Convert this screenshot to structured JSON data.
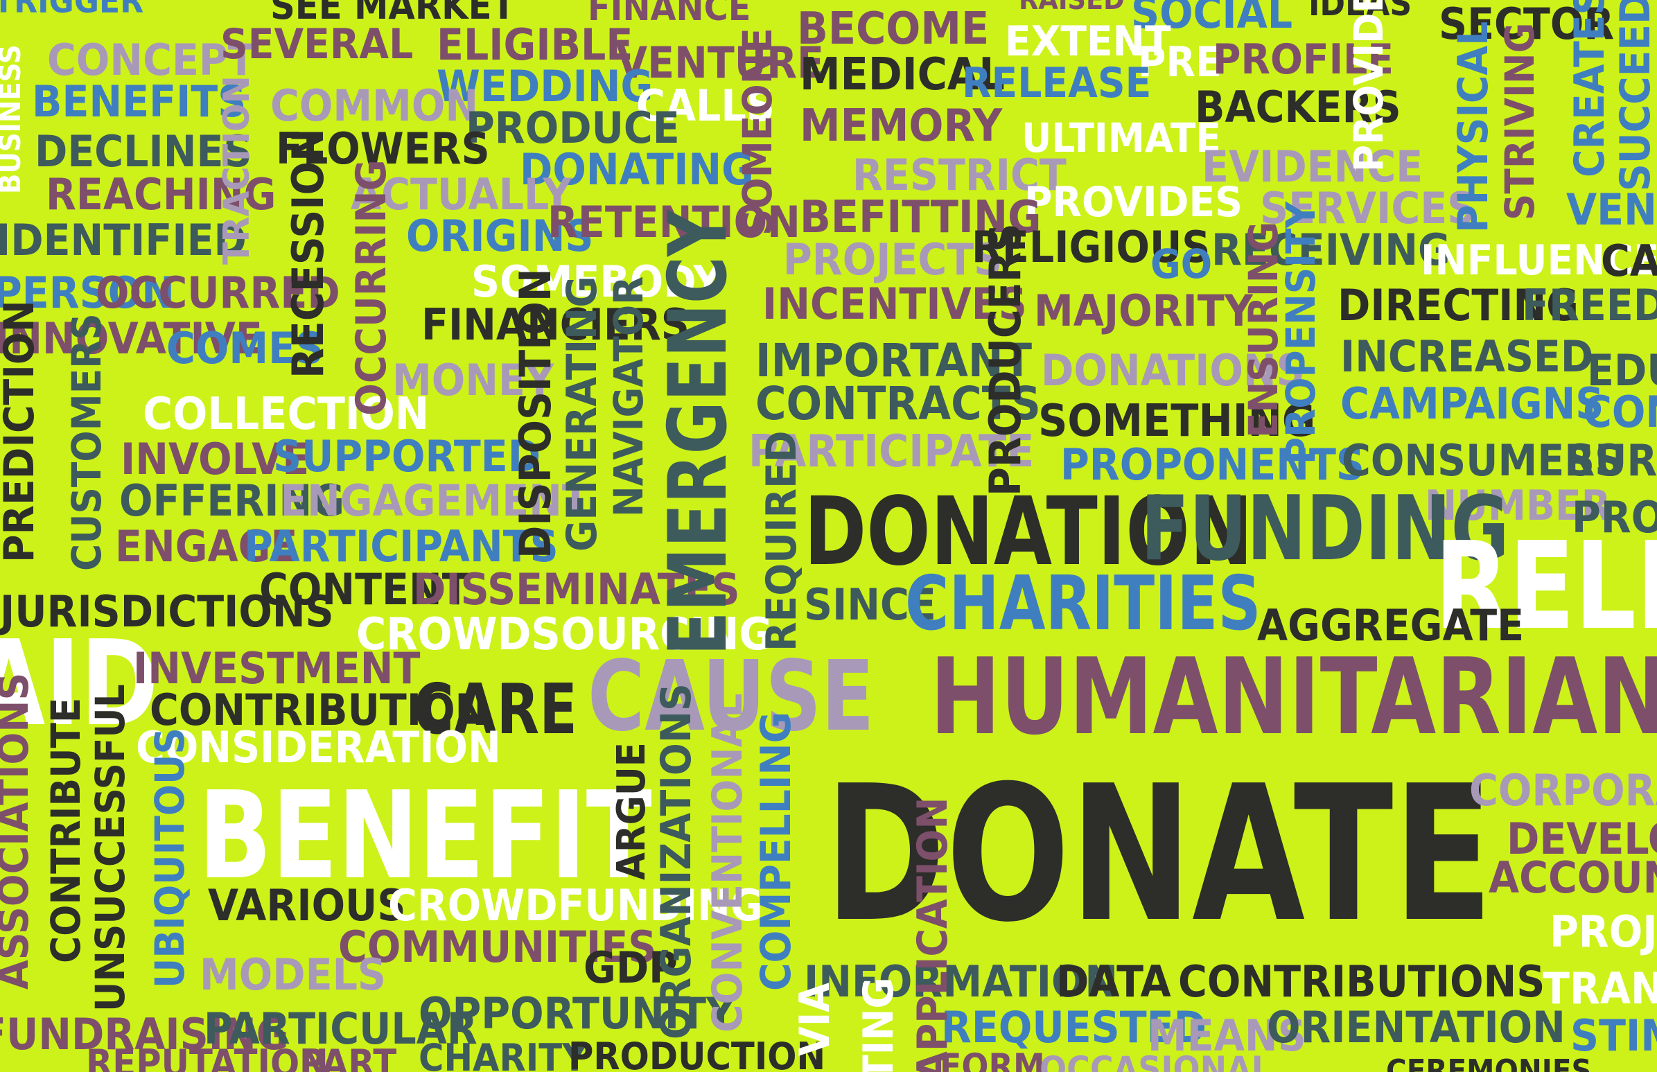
{
  "palette": {
    "background": "#ccf21a",
    "charcoal": "#2d2d2a",
    "white": "#ffffff",
    "plum": "#7e4f6a",
    "blue": "#3f7fc0",
    "lavender": "#a899b8",
    "slate": "#3d5a5c"
  },
  "words": [
    {
      "text": "TRIGGER",
      "color": "blue"
    },
    {
      "text": "SEE MARKET",
      "color": "charcoal"
    },
    {
      "text": "FINANCE",
      "color": "plum"
    },
    {
      "text": "RAISED",
      "color": "plum"
    },
    {
      "text": "SOCIAL",
      "color": "blue"
    },
    {
      "text": "IDEAS",
      "color": "charcoal"
    },
    {
      "text": "SECTOR",
      "color": "charcoal"
    },
    {
      "text": "CONCEPT",
      "color": "lavender"
    },
    {
      "text": "SEVERAL",
      "color": "plum"
    },
    {
      "text": "ELIGIBLE",
      "color": "plum"
    },
    {
      "text": "VENTURE",
      "color": "plum"
    },
    {
      "text": "BECOME",
      "color": "plum"
    },
    {
      "text": "EXTENT",
      "color": "white"
    },
    {
      "text": "PRE",
      "color": "white"
    },
    {
      "text": "PROFILE",
      "color": "plum"
    },
    {
      "text": "BENEFITS",
      "color": "blue"
    },
    {
      "text": "WEDDING",
      "color": "blue"
    },
    {
      "text": "CALLS",
      "color": "white"
    },
    {
      "text": "MEDICAL",
      "color": "charcoal"
    },
    {
      "text": "RELEASE",
      "color": "blue"
    },
    {
      "text": "BACKERS",
      "color": "charcoal"
    },
    {
      "text": "COMMON",
      "color": "lavender"
    },
    {
      "text": "PRODUCE",
      "color": "slate"
    },
    {
      "text": "MEMORY",
      "color": "plum"
    },
    {
      "text": "ULTIMATE",
      "color": "white"
    },
    {
      "text": "DECLINES",
      "color": "slate"
    },
    {
      "text": "FLOWERS",
      "color": "charcoal"
    },
    {
      "text": "DONATING",
      "color": "blue"
    },
    {
      "text": "RESTRICT",
      "color": "lavender"
    },
    {
      "text": "EVIDENCE",
      "color": "lavender"
    },
    {
      "text": "REACHING",
      "color": "plum"
    },
    {
      "text": "ACTUALLY",
      "color": "lavender"
    },
    {
      "text": "PROVIDES",
      "color": "white"
    },
    {
      "text": "SERVICES",
      "color": "lavender"
    },
    {
      "text": "IDENTIFIED",
      "color": "slate"
    },
    {
      "text": "ORIGINS",
      "color": "blue"
    },
    {
      "text": "RETENTION",
      "color": "plum"
    },
    {
      "text": "BEFITTING",
      "color": "plum"
    },
    {
      "text": "VENTURE",
      "color": "blue"
    },
    {
      "text": "PROJECTS",
      "color": "lavender"
    },
    {
      "text": "RELIGIOUS",
      "color": "charcoal"
    },
    {
      "text": "GO",
      "color": "blue"
    },
    {
      "text": "RECEIVING",
      "color": "slate"
    },
    {
      "text": "INFLUENCE",
      "color": "white"
    },
    {
      "text": "CAR",
      "color": "charcoal"
    },
    {
      "text": "SOMEBODY",
      "color": "white"
    },
    {
      "text": "PERSON",
      "color": "blue"
    },
    {
      "text": "OCCURRED",
      "color": "plum"
    },
    {
      "text": "INCENTIVES",
      "color": "plum"
    },
    {
      "text": "MAJORITY",
      "color": "plum"
    },
    {
      "text": "DIRECTING",
      "color": "charcoal"
    },
    {
      "text": "FREEDOM",
      "color": "slate"
    },
    {
      "text": "FINANCIERS",
      "color": "charcoal"
    },
    {
      "text": "INNOVATIVE",
      "color": "plum"
    },
    {
      "text": "COMES",
      "color": "blue"
    },
    {
      "text": "IMPORTANT",
      "color": "slate"
    },
    {
      "text": "INCREASED",
      "color": "slate"
    },
    {
      "text": "EDUC",
      "color": "slate"
    },
    {
      "text": "MONEY",
      "color": "lavender"
    },
    {
      "text": "DONATIONS",
      "color": "lavender"
    },
    {
      "text": "CONTRACTS",
      "color": "slate"
    },
    {
      "text": "CAMPAIGNS",
      "color": "blue"
    },
    {
      "text": "CONS",
      "color": "blue"
    },
    {
      "text": "COLLECTION",
      "color": "white"
    },
    {
      "text": "SOMETHING",
      "color": "charcoal"
    },
    {
      "text": "INVOLVE",
      "color": "plum"
    },
    {
      "text": "SUPPORTED",
      "color": "blue"
    },
    {
      "text": "PARTICIPATE",
      "color": "lavender"
    },
    {
      "text": "PROPONENTS",
      "color": "blue"
    },
    {
      "text": "CONSUMERS",
      "color": "slate"
    },
    {
      "text": "SURVI",
      "color": "slate"
    },
    {
      "text": "OFFERING",
      "color": "slate"
    },
    {
      "text": "ENGAGEMENT",
      "color": "lavender"
    },
    {
      "text": "NUMBER",
      "color": "lavender"
    },
    {
      "text": "PROM",
      "color": "slate"
    },
    {
      "text": "DONATION",
      "color": "charcoal"
    },
    {
      "text": "FUNDING",
      "color": "slate"
    },
    {
      "text": "ENGAGE",
      "color": "plum"
    },
    {
      "text": "PARTICIPANTS",
      "color": "blue"
    },
    {
      "text": "RELI",
      "color": "white"
    },
    {
      "text": "CONTENT",
      "color": "charcoal"
    },
    {
      "text": "DISSEMINATES",
      "color": "plum"
    },
    {
      "text": "JURISDICTIONS",
      "color": "charcoal"
    },
    {
      "text": "SINCE",
      "color": "slate"
    },
    {
      "text": "CHARITIES",
      "color": "blue"
    },
    {
      "text": "AGGREGATE",
      "color": "charcoal"
    },
    {
      "text": "CROWDSOURCING",
      "color": "white"
    },
    {
      "text": "AID",
      "color": "white"
    },
    {
      "text": "INVESTMENT",
      "color": "plum"
    },
    {
      "text": "CAUSE",
      "color": "lavender"
    },
    {
      "text": "HUMANITARIAN",
      "color": "plum"
    },
    {
      "text": "CONTRIBUTION",
      "color": "charcoal"
    },
    {
      "text": "CARE",
      "color": "charcoal"
    },
    {
      "text": "CONSIDERATION",
      "color": "white"
    },
    {
      "text": "BENEFIT",
      "color": "white"
    },
    {
      "text": "DONATE",
      "color": "charcoal"
    },
    {
      "text": "CORPORATIO",
      "color": "lavender"
    },
    {
      "text": "DEVELOPM",
      "color": "plum"
    },
    {
      "text": "ACCOUNTA",
      "color": "plum"
    },
    {
      "text": "VARIOUS",
      "color": "charcoal"
    },
    {
      "text": "CROWDFUNDING",
      "color": "white"
    },
    {
      "text": "PROJE",
      "color": "white"
    },
    {
      "text": "COMMUNITIES",
      "color": "plum"
    },
    {
      "text": "MODELS",
      "color": "lavender"
    },
    {
      "text": "GDP",
      "color": "charcoal"
    },
    {
      "text": "INFORMATION",
      "color": "slate"
    },
    {
      "text": "DATA",
      "color": "charcoal"
    },
    {
      "text": "CONTRIBUTIONS",
      "color": "charcoal"
    },
    {
      "text": "TRANS",
      "color": "white"
    },
    {
      "text": "OPPORTUNITY",
      "color": "slate"
    },
    {
      "text": "FUNDRAISING",
      "color": "plum"
    },
    {
      "text": "PARTICULAR",
      "color": "slate"
    },
    {
      "text": "REQUESTED",
      "color": "blue"
    },
    {
      "text": "MEANS",
      "color": "lavender"
    },
    {
      "text": "ORIENTATION",
      "color": "slate"
    },
    {
      "text": "STIM",
      "color": "blue"
    },
    {
      "text": "REPUTATION",
      "color": "plum"
    },
    {
      "text": "PART",
      "color": "plum"
    },
    {
      "text": "CHARITY",
      "color": "slate"
    },
    {
      "text": "PRODUCTION",
      "color": "charcoal"
    },
    {
      "text": "FORM",
      "color": "plum"
    },
    {
      "text": "OCCASIONAL",
      "color": "lavender"
    },
    {
      "text": "CEREMONIES",
      "color": "charcoal"
    },
    {
      "text": "BUSINESS",
      "color": "white"
    },
    {
      "text": "TRACTION",
      "color": "lavender"
    },
    {
      "text": "RECESSION",
      "color": "charcoal"
    },
    {
      "text": "OCCURRING",
      "color": "plum"
    },
    {
      "text": "SOMEONE",
      "color": "plum"
    },
    {
      "text": "EMERGENCY",
      "color": "slate"
    },
    {
      "text": "DISPOSITION",
      "color": "charcoal"
    },
    {
      "text": "GENERATING",
      "color": "slate"
    },
    {
      "text": "NAVIGATOR",
      "color": "slate"
    },
    {
      "text": "REQUIRED",
      "color": "slate"
    },
    {
      "text": "PRODUCERS",
      "color": "charcoal"
    },
    {
      "text": "ENSURING",
      "color": "plum"
    },
    {
      "text": "PROPENSITY",
      "color": "blue"
    },
    {
      "text": "PROVIDE",
      "color": "white"
    },
    {
      "text": "PHYSICAL",
      "color": "blue"
    },
    {
      "text": "STRIVING",
      "color": "plum"
    },
    {
      "text": "CREATES",
      "color": "blue"
    },
    {
      "text": "SUCCEED",
      "color": "blue"
    },
    {
      "text": "PREDICTION",
      "color": "charcoal"
    },
    {
      "text": "CUSTOMERS",
      "color": "slate"
    },
    {
      "text": "ASSOCIATIONS",
      "color": "plum"
    },
    {
      "text": "CONTRIBUTE",
      "color": "charcoal"
    },
    {
      "text": "UNSUCCESSFUL",
      "color": "charcoal"
    },
    {
      "text": "UBIQUITOUS",
      "color": "blue"
    },
    {
      "text": "ARGUE",
      "color": "charcoal"
    },
    {
      "text": "ORGANIZATIONS",
      "color": "slate"
    },
    {
      "text": "CONVENTIONAL",
      "color": "lavender"
    },
    {
      "text": "COMPELLING",
      "color": "blue"
    },
    {
      "text": "VIA",
      "color": "white"
    },
    {
      "text": "TING",
      "color": "white"
    },
    {
      "text": "APPLICATION",
      "color": "plum"
    }
  ]
}
